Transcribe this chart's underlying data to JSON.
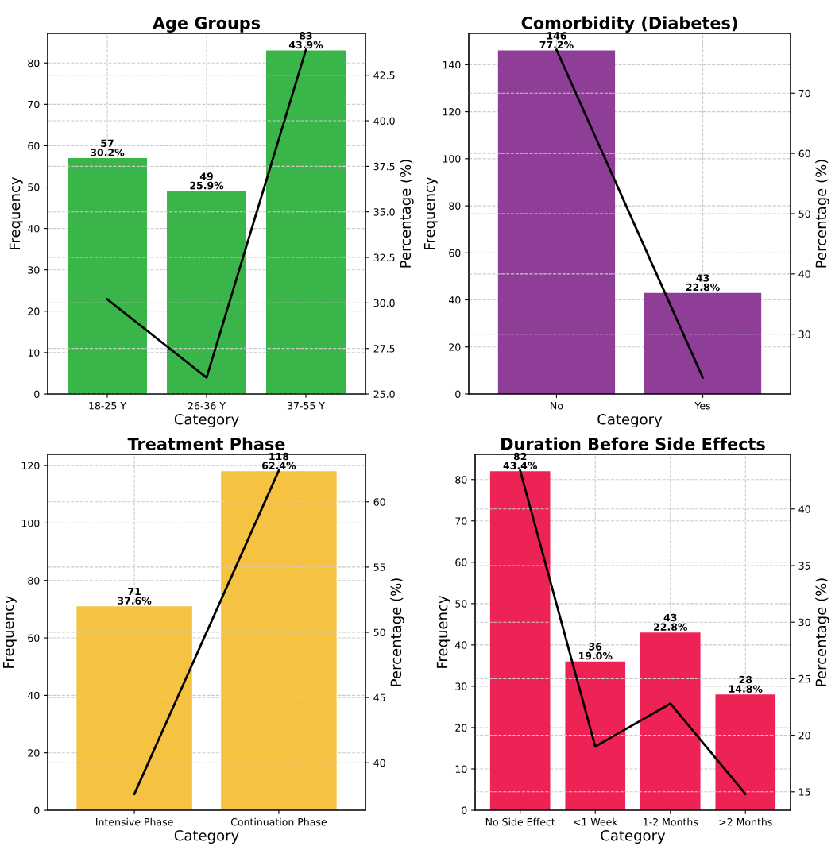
{
  "chart_data": [
    {
      "type": "bar",
      "title": "Age Groups",
      "xlabel": "Category",
      "ylabel": "Frequency",
      "y2label": "Percentage (%)",
      "categories": [
        "18-25 Y",
        "26-36 Y",
        "37-55 Y"
      ],
      "series": [
        {
          "color": "#3ab54a",
          "values": [
            57,
            49,
            83
          ],
          "value_labels": [
            "57\n30.2%",
            "49\n25.9%",
            "83\n43.9%"
          ]
        },
        {
          "type": "line",
          "axis": "y2",
          "color": "#000000",
          "values": [
            30.2,
            25.9,
            43.9
          ]
        }
      ],
      "ylim": [
        0,
        87.15
      ],
      "yticks": [
        0,
        10,
        20,
        30,
        40,
        50,
        60,
        70,
        80
      ],
      "y2lim": [
        25.0,
        44.8
      ],
      "y2ticks": [
        {
          "value": 25,
          "label": "25.0"
        },
        27.5,
        {
          "value": 30,
          "label": "30.0"
        },
        32.5,
        {
          "value": 35,
          "label": "35.0"
        },
        37.5,
        {
          "value": 40,
          "label": "40.0"
        },
        42.5
      ],
      "grid": true
    },
    {
      "type": "bar",
      "title": "Comorbidity (Diabetes)",
      "xlabel": "Category",
      "ylabel": "Frequency",
      "y2label": "Percentage (%)",
      "categories": [
        "No",
        "Yes"
      ],
      "series": [
        {
          "color": "#8e3e96",
          "values": [
            146,
            43
          ],
          "value_labels": [
            "146\n77.2%",
            "43\n22.8%"
          ]
        },
        {
          "type": "line",
          "axis": "y2",
          "color": "#000000",
          "values": [
            77.2,
            22.8
          ]
        }
      ],
      "ylim": [
        0,
        153.3
      ],
      "yticks": [
        0,
        20,
        40,
        60,
        80,
        100,
        120,
        140
      ],
      "y2lim": [
        20.08,
        79.92
      ],
      "y2ticks": [
        30,
        40,
        50,
        60,
        70
      ],
      "grid": true
    },
    {
      "type": "bar",
      "title": "Treatment Phase",
      "xlabel": "Category",
      "ylabel": "Frequency",
      "y2label": "Percentage (%)",
      "categories": [
        "Intensive Phase",
        "Continuation Phase"
      ],
      "series": [
        {
          "color": "#f5c242",
          "values": [
            71,
            118
          ],
          "value_labels": [
            "71\n37.6%",
            "118\n62.4%"
          ]
        },
        {
          "type": "line",
          "axis": "y2",
          "color": "#000000",
          "values": [
            37.6,
            62.4
          ]
        }
      ],
      "ylim": [
        0,
        123.9
      ],
      "yticks": [
        0,
        20,
        40,
        60,
        80,
        100,
        120
      ],
      "y2lim": [
        36.36,
        63.64
      ],
      "y2ticks": [
        40,
        45,
        50,
        55,
        60
      ],
      "grid": true
    },
    {
      "type": "bar",
      "title": "Duration Before Side Effects",
      "xlabel": "Category",
      "ylabel": "Frequency",
      "y2label": "Percentage (%)",
      "categories": [
        "No Side Effect",
        "<1 Week",
        "1-2 Months",
        ">2 Months"
      ],
      "series": [
        {
          "color": "#ee2355",
          "values": [
            82,
            36,
            43,
            28
          ],
          "value_labels": [
            "82\n43.4%",
            "36\n19.0%",
            "43\n22.8%",
            "28\n14.8%"
          ]
        },
        {
          "type": "line",
          "axis": "y2",
          "color": "#000000",
          "values": [
            43.4,
            19.0,
            22.8,
            14.8
          ]
        }
      ],
      "ylim": [
        0,
        86.1
      ],
      "yticks": [
        0,
        10,
        20,
        30,
        40,
        50,
        60,
        70,
        80
      ],
      "y2lim": [
        13.37,
        44.83
      ],
      "y2ticks": [
        15,
        20,
        25,
        30,
        35,
        40
      ],
      "grid": true
    }
  ]
}
